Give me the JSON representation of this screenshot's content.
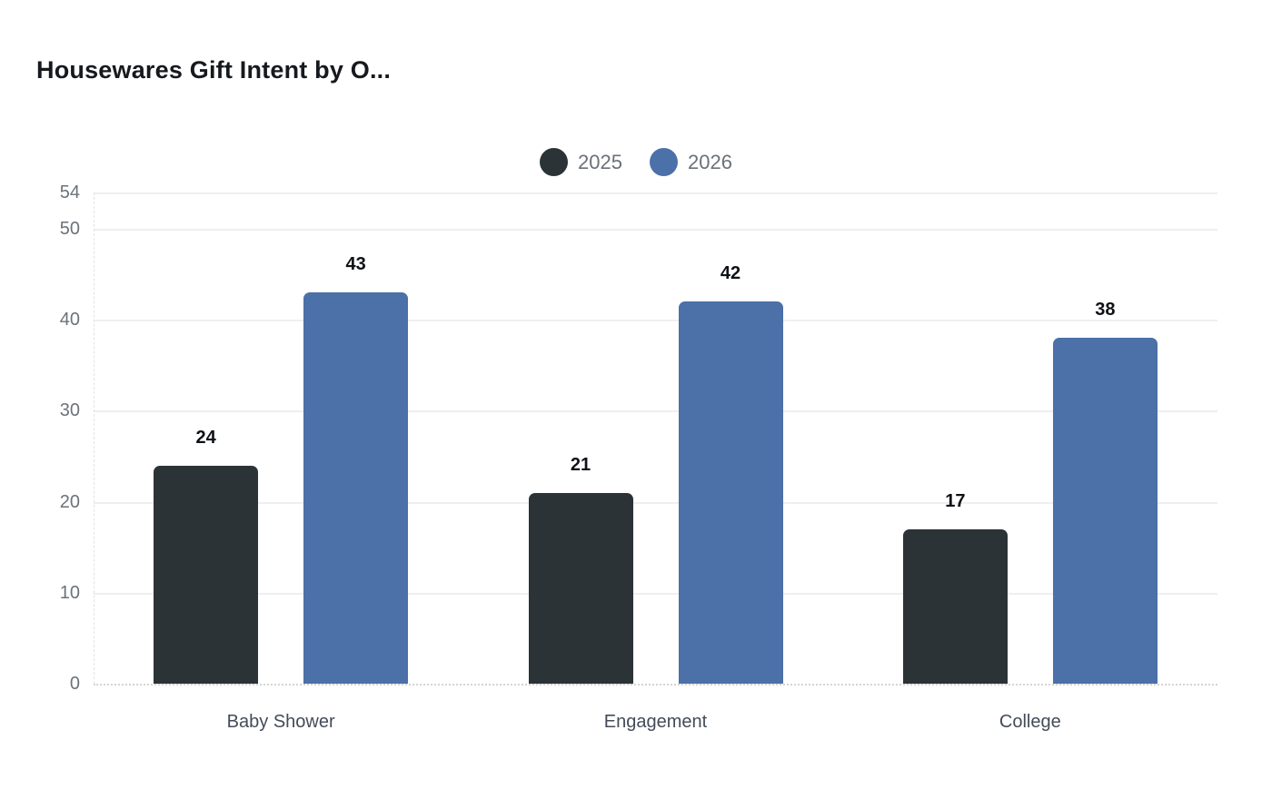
{
  "chart_data": {
    "type": "bar",
    "title": "Housewares Gift Intent by O...",
    "categories": [
      "Baby Shower",
      "Engagement",
      "College"
    ],
    "series": [
      {
        "name": "2025",
        "color": "#2b3337",
        "values": [
          24,
          21,
          17
        ]
      },
      {
        "name": "2026",
        "color": "#4c70a8",
        "values": [
          43,
          42,
          38
        ]
      }
    ],
    "xlabel": "",
    "ylabel": "",
    "ylim": [
      0,
      54
    ],
    "yticks": [
      0,
      10,
      20,
      30,
      40,
      50,
      54
    ],
    "grid": true,
    "legend_position": "top-center",
    "value_labels": true
  },
  "colors": {
    "background": "#ffffff",
    "title": "#16191d",
    "gridline": "#efefef",
    "baseline": "#d4d4d4",
    "tick_label": "#6c727a",
    "category_label": "#434c57",
    "value_label": "#0e1116",
    "legend_text": "#6b7177"
  }
}
